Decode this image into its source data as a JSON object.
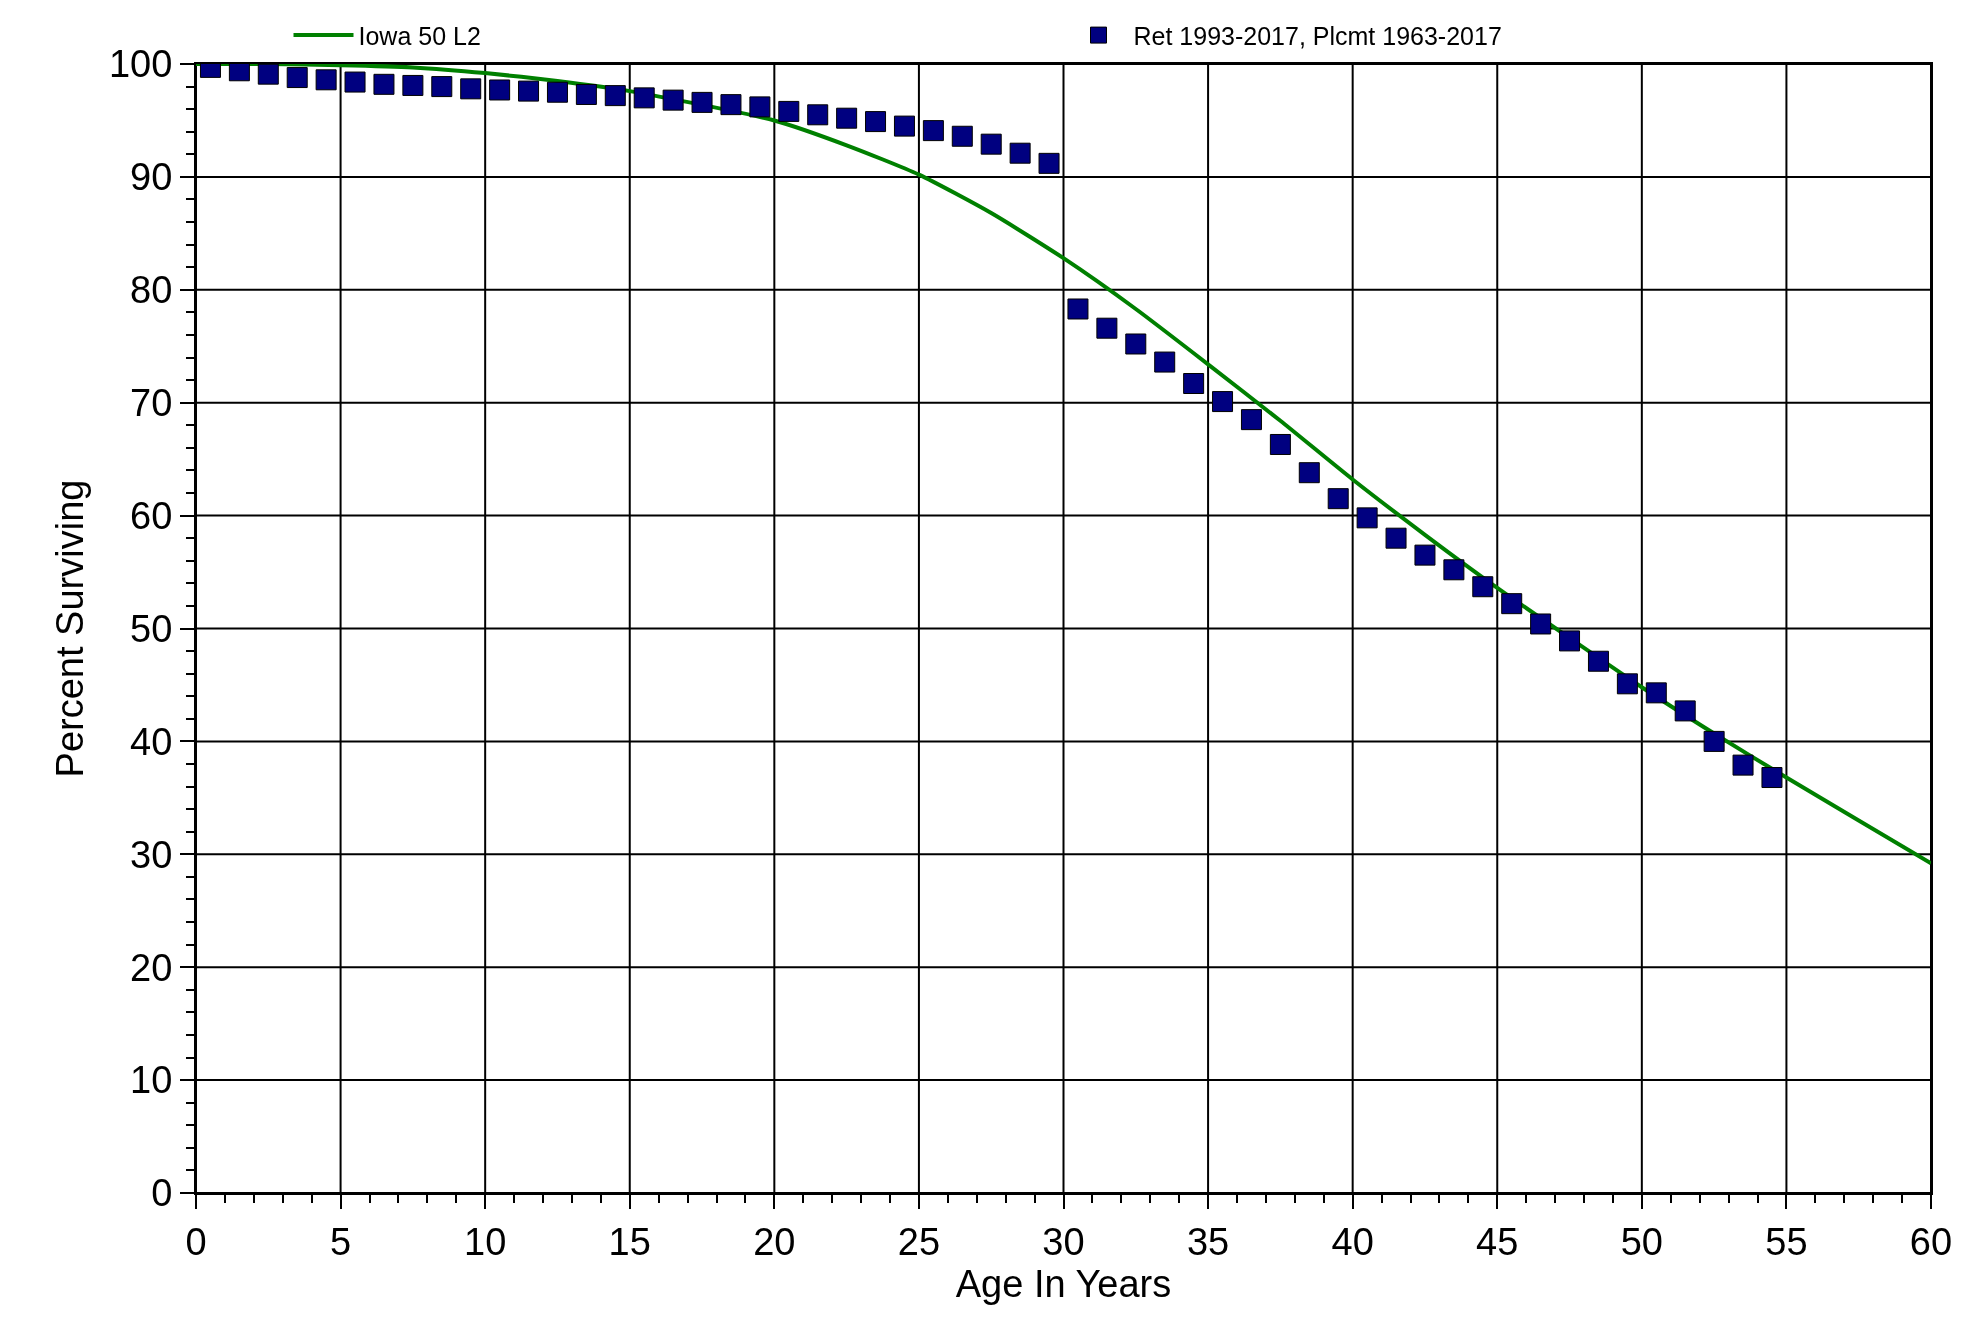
{
  "chart_data": {
    "type": "line",
    "xlabel": "Age In Years",
    "ylabel": "Percent Surviving",
    "xlim": [
      0,
      60
    ],
    "xticks": [
      0,
      5,
      10,
      15,
      20,
      25,
      30,
      35,
      40,
      45,
      50,
      55,
      60
    ],
    "ylim": [
      0,
      100
    ],
    "yticks": [
      0,
      10,
      20,
      30,
      40,
      50,
      60,
      70,
      80,
      90,
      100
    ],
    "grid": true,
    "legend": "top",
    "series": [
      {
        "name": "Iowa 50 L2",
        "marker": "none",
        "color": "#008000",
        "x": [
          0,
          2.5,
          5,
          7.5,
          10,
          12.5,
          15,
          20,
          22.5,
          25,
          27.5,
          30,
          32.5,
          35,
          37.5,
          40,
          42.5,
          45,
          50,
          52.5,
          55,
          57.5,
          60
        ],
        "values": [
          100,
          100,
          99.9,
          99.7,
          99.2,
          98.5,
          97.6,
          95,
          92.8,
          90.2,
          86.8,
          82.8,
          78.3,
          73.4,
          68.4,
          63.2,
          58.3,
          53.6,
          44.8,
          40.7,
          36.8,
          33.0,
          29.2
        ]
      },
      {
        "name": "Ret 1993-2017, Plcmt 1963-2017",
        "type": "scatter",
        "marker": "square",
        "color": "#000080",
        "x": [
          0.5,
          1.5,
          2.5,
          3.5,
          4.5,
          5.5,
          6.5,
          7.5,
          8.5,
          9.5,
          10.5,
          11.5,
          12.5,
          13.5,
          14.5,
          15.5,
          16.5,
          17.5,
          18.5,
          19.5,
          20.5,
          21.5,
          22.5,
          23.5,
          24.5,
          25.5,
          26.5,
          27.5,
          28.5,
          29.5,
          30.5,
          31.5,
          32.5,
          33.5,
          34.5,
          35.5,
          36.5,
          37.5,
          38.5,
          39.5,
          40.5,
          41.5,
          42.5,
          43.5,
          44.5,
          45.5,
          46.5,
          47.5,
          48.5,
          49.5,
          50.5,
          51.5,
          52.5,
          53.5,
          54.5
        ],
        "values": [
          99.7,
          99.4,
          99.1,
          98.8,
          98.6,
          98.4,
          98.2,
          98.1,
          98.0,
          97.8,
          97.7,
          97.6,
          97.5,
          97.3,
          97.2,
          97.0,
          96.8,
          96.6,
          96.4,
          96.2,
          95.8,
          95.5,
          95.2,
          94.9,
          94.5,
          94.1,
          93.6,
          92.9,
          92.1,
          91.2,
          78.3,
          76.6,
          75.2,
          73.6,
          71.7,
          70.1,
          68.5,
          66.3,
          63.8,
          61.5,
          59.8,
          58.0,
          56.5,
          55.2,
          53.7,
          52.2,
          50.4,
          48.9,
          47.1,
          45.1,
          44.3,
          42.7,
          40.0,
          37.9,
          36.8
        ]
      }
    ]
  }
}
